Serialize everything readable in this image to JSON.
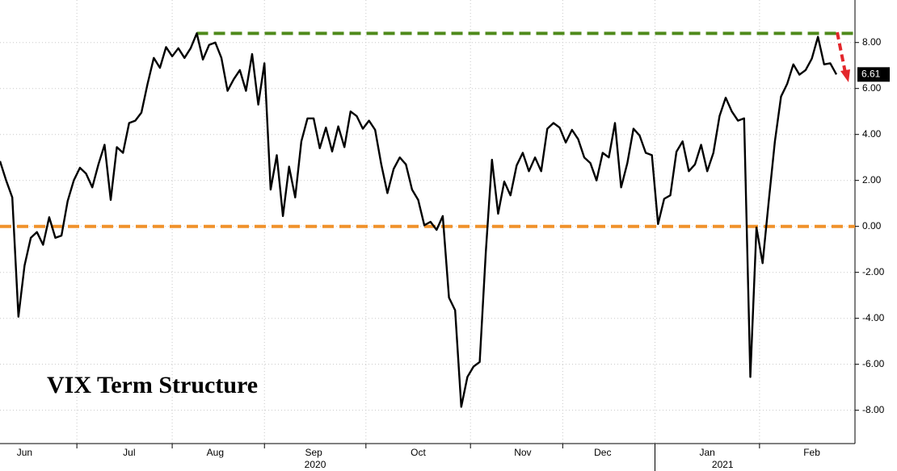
{
  "chart_data": {
    "type": "line",
    "title": "VIX Term Structure",
    "categories": [
      null,
      null,
      null,
      null,
      "Jun",
      null,
      null,
      null,
      null,
      null,
      null,
      null,
      null,
      null,
      null,
      null,
      null,
      null,
      null,
      null,
      null,
      "Jul",
      null,
      null,
      null,
      null,
      null,
      null,
      null,
      null,
      null,
      null,
      null,
      null,
      null,
      "Aug",
      null,
      null,
      null,
      null,
      null,
      null,
      null,
      null,
      null,
      null,
      null,
      null,
      null,
      null,
      null,
      "Sep",
      null,
      null,
      null,
      null,
      null,
      null,
      null,
      null,
      null,
      null,
      null,
      null,
      null,
      null,
      null,
      null,
      "Oct",
      null,
      null,
      null,
      null,
      null,
      null,
      null,
      null,
      null,
      null,
      null,
      null,
      null,
      null,
      null,
      null,
      "Nov",
      null,
      null,
      null,
      null,
      null,
      null,
      null,
      null,
      null,
      null,
      null,
      null,
      "Dec",
      null,
      null,
      null,
      null,
      null,
      null,
      null,
      null,
      null,
      null,
      null,
      null,
      null,
      null,
      null,
      null,
      "Jan",
      null,
      null,
      null,
      null,
      null,
      null,
      null,
      null,
      null,
      null,
      null,
      null,
      null,
      null,
      null,
      null,
      "Feb",
      null,
      null,
      null,
      null
    ],
    "years": [
      "2020",
      "2021"
    ],
    "values": [
      2.84,
      2.0,
      1.26,
      -3.93,
      -1.7,
      -0.5,
      -0.25,
      -0.8,
      0.4,
      -0.5,
      -0.4,
      1.1,
      2.0,
      2.55,
      2.3,
      1.7,
      2.7,
      3.55,
      1.15,
      3.45,
      3.2,
      4.5,
      4.6,
      4.95,
      6.2,
      7.33,
      6.9,
      7.8,
      7.4,
      7.75,
      7.33,
      7.75,
      8.4,
      7.26,
      7.9,
      8.0,
      7.33,
      5.9,
      6.4,
      6.8,
      5.9,
      7.5,
      5.3,
      7.1,
      1.6,
      3.1,
      0.45,
      2.6,
      1.26,
      3.7,
      4.7,
      4.7,
      3.4,
      4.3,
      3.26,
      4.35,
      3.45,
      5.0,
      4.8,
      4.25,
      4.6,
      4.2,
      2.7,
      1.45,
      2.5,
      3.0,
      2.7,
      1.6,
      1.15,
      0.05,
      0.2,
      -0.15,
      0.45,
      -3.1,
      -3.65,
      -7.85,
      -6.55,
      -6.1,
      -5.9,
      -1.1,
      2.9,
      0.55,
      1.95,
      1.35,
      2.65,
      3.2,
      2.4,
      3.0,
      2.4,
      4.25,
      4.5,
      4.3,
      3.65,
      4.2,
      3.8,
      3.0,
      2.75,
      2.0,
      3.2,
      3.0,
      4.5,
      1.7,
      2.75,
      4.25,
      3.95,
      3.2,
      3.1,
      0.1,
      1.2,
      1.35,
      3.25,
      3.7,
      2.4,
      2.7,
      3.55,
      2.4,
      3.2,
      4.8,
      5.6,
      5.0,
      4.6,
      4.7,
      -6.55,
      -0.05,
      -1.6,
      1.1,
      3.7,
      5.65,
      6.2,
      7.05,
      6.6,
      6.8,
      7.3,
      8.25,
      7.05,
      7.1,
      6.61
    ],
    "color": "#000000",
    "last_value_label": "6.61",
    "reference_lines": [
      {
        "value": 8.4,
        "color": "#4f8a1b"
      },
      {
        "value": 0,
        "color": "#f0922b"
      }
    ],
    "ylim": [
      -9.45,
      9.85
    ],
    "yticks": [
      {
        "value": -8,
        "label": "-8.00"
      },
      {
        "value": -6,
        "label": "-6.00"
      },
      {
        "value": -4,
        "label": "-4.00"
      },
      {
        "value": -2,
        "label": "-2.00"
      },
      {
        "value": 0,
        "label": "0.00"
      },
      {
        "value": 2,
        "label": "2.00"
      },
      {
        "value": 4,
        "label": "4.00"
      },
      {
        "value": 6,
        "label": "6.00"
      },
      {
        "value": 8,
        "label": "8.00"
      }
    ],
    "grid": true
  }
}
